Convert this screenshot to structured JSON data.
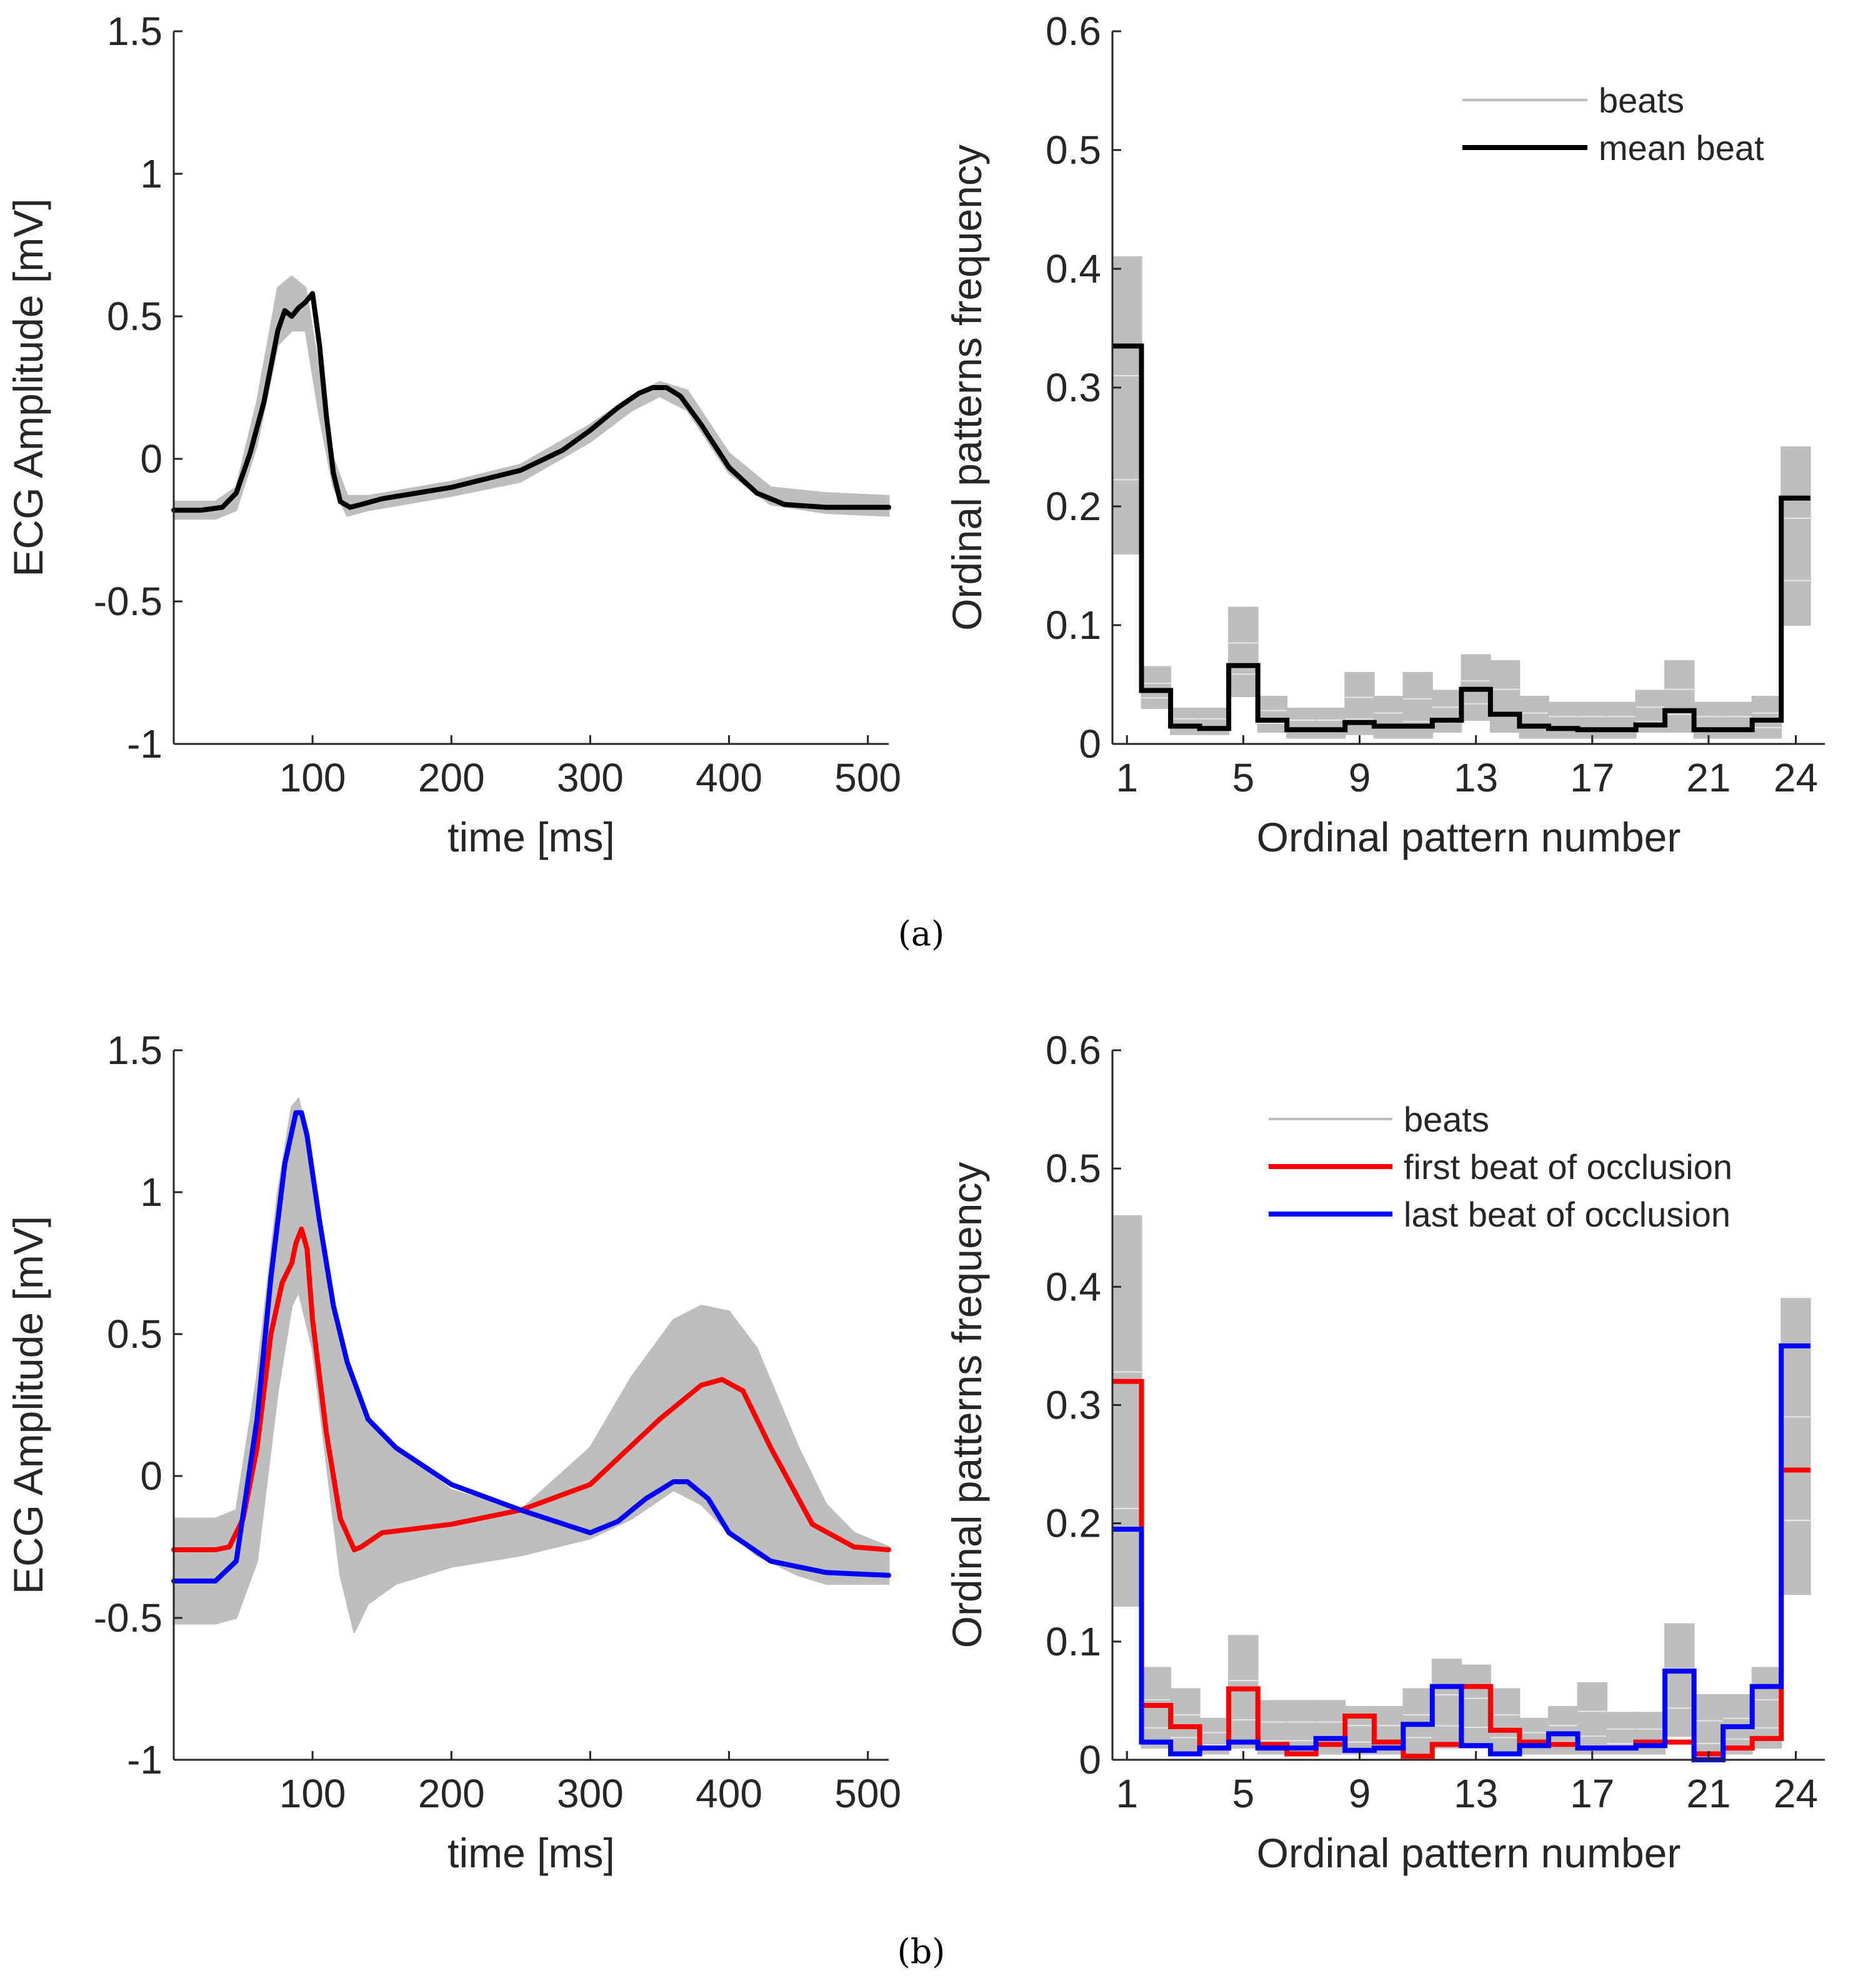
{
  "figure": {
    "caption_a": "(a)",
    "caption_b": "(b)"
  },
  "colors": {
    "beats": "#bebebe",
    "mean": "#000000",
    "first": "#ff0000",
    "last": "#0000ff",
    "axis": "#262626"
  },
  "chart_data": [
    {
      "id": "a-left",
      "type": "line",
      "xlabel": "time [ms]",
      "ylabel": "ECG Amplitude [mV]",
      "xlim": [
        0,
        515
      ],
      "ylim": [
        -1,
        1.5
      ],
      "xticks": [
        100,
        200,
        300,
        400,
        500
      ],
      "yticks": [
        -1,
        -0.5,
        0,
        0.5,
        1,
        1.5
      ],
      "ytick_labels": [
        "-1",
        "-0.5",
        "0",
        "0.5",
        "1",
        "1.5"
      ],
      "band": {
        "name": "beats",
        "x": [
          0,
          30,
          45,
          60,
          75,
          85,
          95,
          105,
          115,
          125,
          140,
          200,
          250,
          300,
          330,
          350,
          370,
          400,
          430,
          470,
          515
        ],
        "upper": [
          -0.15,
          -0.15,
          -0.1,
          0.2,
          0.6,
          0.64,
          0.6,
          0.3,
          0.0,
          -0.13,
          -0.13,
          -0.08,
          -0.02,
          0.12,
          0.22,
          0.27,
          0.24,
          0.02,
          -0.1,
          -0.12,
          -0.13
        ],
        "lower": [
          -0.21,
          -0.21,
          -0.18,
          0.05,
          0.4,
          0.45,
          0.45,
          0.15,
          -0.1,
          -0.2,
          -0.18,
          -0.13,
          -0.08,
          0.06,
          0.17,
          0.22,
          0.17,
          -0.05,
          -0.16,
          -0.19,
          -0.2
        ]
      },
      "series": [
        {
          "name": "mean beat",
          "color": "#000000",
          "x": [
            0,
            20,
            35,
            45,
            55,
            65,
            75,
            80,
            85,
            90,
            95,
            100,
            105,
            110,
            115,
            120,
            127,
            135,
            150,
            200,
            250,
            280,
            300,
            320,
            335,
            345,
            355,
            365,
            380,
            400,
            420,
            440,
            470,
            515
          ],
          "y": [
            -0.18,
            -0.18,
            -0.17,
            -0.12,
            0.02,
            0.2,
            0.45,
            0.52,
            0.5,
            0.53,
            0.55,
            0.58,
            0.4,
            0.15,
            -0.05,
            -0.15,
            -0.17,
            -0.16,
            -0.14,
            -0.1,
            -0.04,
            0.03,
            0.1,
            0.18,
            0.23,
            0.25,
            0.25,
            0.22,
            0.12,
            -0.03,
            -0.12,
            -0.16,
            -0.17,
            -0.17
          ]
        }
      ]
    },
    {
      "id": "a-right",
      "type": "step",
      "xlabel": "Ordinal pattern number",
      "ylabel": "Ordinal patterns frequency",
      "xlim": [
        0.5,
        25
      ],
      "ylim": [
        0,
        0.6
      ],
      "xticks": [
        1,
        5,
        9,
        13,
        17,
        21,
        24
      ],
      "xtick_labels": [
        "1",
        "5",
        "9",
        "13",
        "17",
        "21",
        "24"
      ],
      "yticks": [
        0,
        0.1,
        0.2,
        0.3,
        0.4,
        0.5,
        0.6
      ],
      "ytick_labels": [
        "0",
        "0.1",
        "0.2",
        "0.3",
        "0.4",
        "0.5",
        "0.6"
      ],
      "legend": {
        "position": "top-right",
        "entries": [
          {
            "label": "beats",
            "color": "#bebebe",
            "thick": false
          },
          {
            "label": "mean beat",
            "color": "#000000",
            "thick": true
          }
        ]
      },
      "beat_ranges": [
        [
          0.16,
          0.41
        ],
        [
          0.03,
          0.065
        ],
        [
          0.008,
          0.03
        ],
        [
          0.008,
          0.03
        ],
        [
          0.04,
          0.115
        ],
        [
          0.01,
          0.04
        ],
        [
          0.005,
          0.03
        ],
        [
          0.005,
          0.03
        ],
        [
          0.008,
          0.06
        ],
        [
          0.005,
          0.04
        ],
        [
          0.005,
          0.06
        ],
        [
          0.01,
          0.045
        ],
        [
          0.02,
          0.075
        ],
        [
          0.01,
          0.07
        ],
        [
          0.005,
          0.04
        ],
        [
          0.005,
          0.035
        ],
        [
          0.005,
          0.035
        ],
        [
          0.005,
          0.035
        ],
        [
          0.01,
          0.045
        ],
        [
          0.01,
          0.07
        ],
        [
          0.005,
          0.035
        ],
        [
          0.005,
          0.035
        ],
        [
          0.005,
          0.04
        ],
        [
          0.1,
          0.25
        ]
      ],
      "series": [
        {
          "name": "mean beat",
          "color": "#000000",
          "values": [
            0.335,
            0.045,
            0.015,
            0.013,
            0.066,
            0.02,
            0.012,
            0.012,
            0.018,
            0.015,
            0.015,
            0.02,
            0.046,
            0.025,
            0.015,
            0.013,
            0.012,
            0.012,
            0.016,
            0.028,
            0.012,
            0.012,
            0.02,
            0.207
          ]
        }
      ]
    },
    {
      "id": "b-left",
      "type": "line",
      "xlabel": "time [ms]",
      "ylabel": "ECG Amplitude [mV]",
      "xlim": [
        0,
        515
      ],
      "ylim": [
        -1,
        1.5
      ],
      "xticks": [
        100,
        200,
        300,
        400,
        500
      ],
      "yticks": [
        -1,
        -0.5,
        0,
        0.5,
        1,
        1.5
      ],
      "ytick_labels": [
        "-1",
        "-0.5",
        "0",
        "0.5",
        "1",
        "1.5"
      ],
      "band": {
        "name": "beats",
        "x": [
          0,
          30,
          45,
          60,
          75,
          85,
          90,
          100,
          110,
          120,
          130,
          140,
          160,
          200,
          250,
          300,
          330,
          360,
          380,
          400,
          420,
          450,
          470,
          490,
          515
        ],
        "upper": [
          -0.15,
          -0.15,
          -0.12,
          0.35,
          1.0,
          1.3,
          1.33,
          1.1,
          0.75,
          0.45,
          0.3,
          0.2,
          0.1,
          -0.05,
          -0.12,
          0.1,
          0.35,
          0.55,
          0.6,
          0.58,
          0.45,
          0.1,
          -0.1,
          -0.2,
          -0.25
        ],
        "lower": [
          -0.52,
          -0.52,
          -0.5,
          -0.3,
          0.3,
          0.6,
          0.65,
          0.45,
          0.05,
          -0.35,
          -0.55,
          -0.45,
          -0.38,
          -0.32,
          -0.28,
          -0.22,
          -0.15,
          -0.05,
          -0.1,
          -0.2,
          -0.28,
          -0.35,
          -0.38,
          -0.38,
          -0.38
        ]
      },
      "legend_entries_in_right_panel": true,
      "series": [
        {
          "name": "first beat of occlusion",
          "color": "#ff0000",
          "x": [
            0,
            30,
            40,
            50,
            60,
            70,
            78,
            85,
            88,
            92,
            96,
            100,
            110,
            120,
            130,
            135,
            150,
            200,
            250,
            300,
            350,
            380,
            395,
            410,
            430,
            460,
            490,
            515
          ],
          "y": [
            -0.26,
            -0.26,
            -0.25,
            -0.15,
            0.1,
            0.5,
            0.68,
            0.75,
            0.82,
            0.87,
            0.8,
            0.55,
            0.15,
            -0.15,
            -0.26,
            -0.25,
            -0.2,
            -0.17,
            -0.12,
            -0.03,
            0.2,
            0.32,
            0.34,
            0.3,
            0.1,
            -0.17,
            -0.25,
            -0.26
          ]
        },
        {
          "name": "last beat of occlusion",
          "color": "#0000ff",
          "x": [
            0,
            30,
            45,
            60,
            70,
            80,
            88,
            92,
            96,
            105,
            115,
            125,
            140,
            160,
            200,
            250,
            300,
            320,
            340,
            360,
            370,
            385,
            400,
            430,
            470,
            515
          ],
          "y": [
            -0.37,
            -0.37,
            -0.3,
            0.2,
            0.7,
            1.1,
            1.28,
            1.28,
            1.2,
            0.9,
            0.6,
            0.4,
            0.2,
            0.1,
            -0.03,
            -0.12,
            -0.2,
            -0.16,
            -0.08,
            -0.02,
            -0.02,
            -0.08,
            -0.2,
            -0.3,
            -0.34,
            -0.35
          ]
        }
      ]
    },
    {
      "id": "b-right",
      "type": "step",
      "xlabel": "Ordinal pattern number",
      "ylabel": "Ordinal patterns frequency",
      "xlim": [
        0.5,
        25
      ],
      "ylim": [
        0,
        0.6
      ],
      "xticks": [
        1,
        5,
        9,
        13,
        17,
        21,
        24
      ],
      "xtick_labels": [
        "1",
        "5",
        "9",
        "13",
        "17",
        "21",
        "24"
      ],
      "yticks": [
        0,
        0.1,
        0.2,
        0.3,
        0.4,
        0.5,
        0.6
      ],
      "ytick_labels": [
        "0",
        "0.1",
        "0.2",
        "0.3",
        "0.4",
        "0.5",
        "0.6"
      ],
      "legend": {
        "position": "top-right",
        "entries": [
          {
            "label": "beats",
            "color": "#bebebe",
            "thick": false
          },
          {
            "label": "first beat of occlusion",
            "color": "#ff0000",
            "thick": true
          },
          {
            "label": "last beat of occlusion",
            "color": "#0000ff",
            "thick": true
          }
        ]
      },
      "beat_ranges": [
        [
          0.13,
          0.46
        ],
        [
          0.01,
          0.078
        ],
        [
          0.005,
          0.06
        ],
        [
          0.005,
          0.035
        ],
        [
          0.01,
          0.105
        ],
        [
          0.005,
          0.05
        ],
        [
          0.005,
          0.05
        ],
        [
          0.005,
          0.05
        ],
        [
          0.005,
          0.045
        ],
        [
          0.005,
          0.045
        ],
        [
          0.005,
          0.06
        ],
        [
          0.01,
          0.085
        ],
        [
          0.01,
          0.08
        ],
        [
          0.005,
          0.06
        ],
        [
          0.005,
          0.035
        ],
        [
          0.005,
          0.045
        ],
        [
          0.005,
          0.065
        ],
        [
          0.005,
          0.04
        ],
        [
          0.005,
          0.04
        ],
        [
          0.02,
          0.115
        ],
        [
          0.0,
          0.055
        ],
        [
          0.005,
          0.055
        ],
        [
          0.01,
          0.078
        ],
        [
          0.14,
          0.39
        ]
      ],
      "series": [
        {
          "name": "first beat of occlusion",
          "color": "#ff0000",
          "values": [
            0.32,
            0.046,
            0.028,
            0.01,
            0.06,
            0.013,
            0.005,
            0.013,
            0.037,
            0.015,
            0.003,
            0.013,
            0.062,
            0.025,
            0.015,
            0.013,
            0.01,
            0.01,
            0.015,
            0.015,
            0.005,
            0.01,
            0.018,
            0.245
          ]
        },
        {
          "name": "last beat of occlusion",
          "color": "#0000ff",
          "values": [
            0.195,
            0.015,
            0.005,
            0.01,
            0.015,
            0.01,
            0.01,
            0.018,
            0.008,
            0.01,
            0.03,
            0.062,
            0.012,
            0.005,
            0.012,
            0.022,
            0.01,
            0.01,
            0.012,
            0.075,
            0.0,
            0.028,
            0.062,
            0.35
          ]
        }
      ]
    }
  ]
}
